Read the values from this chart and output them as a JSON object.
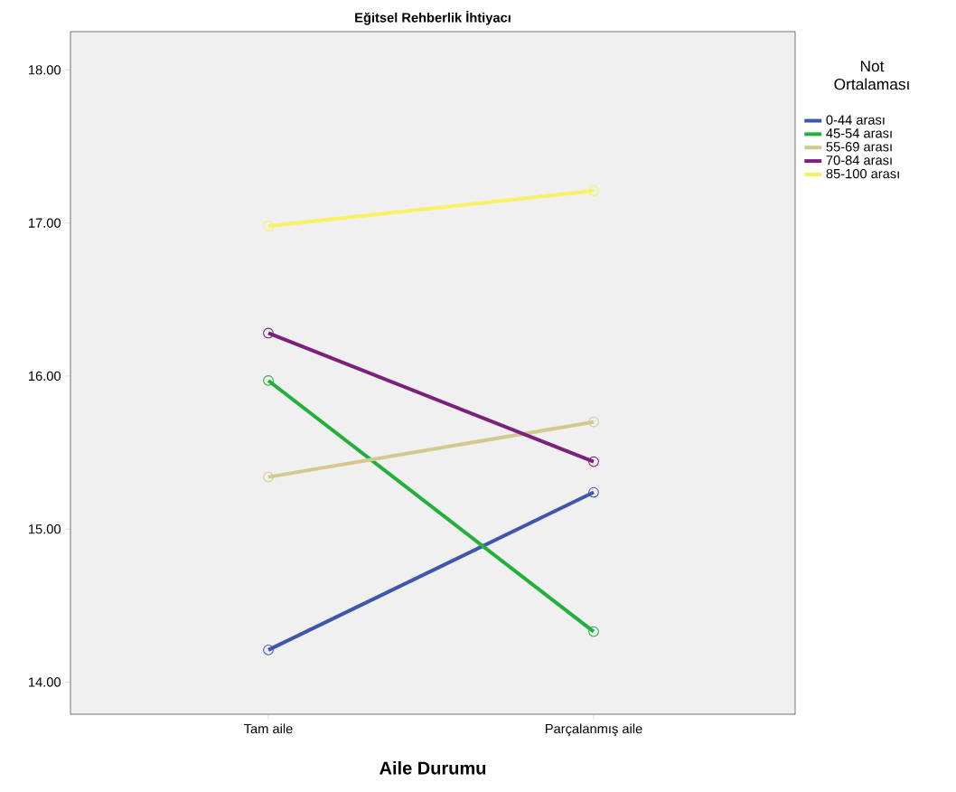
{
  "chart_data": {
    "type": "line",
    "title": "Eğitsel Rehberlik İhtiyacı",
    "xlabel": "Aile Durumu",
    "legend_title": "Not Ortalaması",
    "categories": [
      "Tam aile",
      "Parçalanmış aile"
    ],
    "series": [
      {
        "name": "0-44 arası",
        "color": "#3f57ab",
        "values": [
          14.21,
          15.24
        ]
      },
      {
        "name": "45-54 arası",
        "color": "#22b03a",
        "values": [
          15.97,
          14.33
        ]
      },
      {
        "name": "55-69 arası",
        "color": "#d4c98c",
        "values": [
          15.34,
          15.7
        ]
      },
      {
        "name": "70-84 arası",
        "color": "#7c207c",
        "values": [
          16.28,
          15.44
        ]
      },
      {
        "name": "85-100 arası",
        "color": "#f6f363",
        "values": [
          16.98,
          17.21
        ]
      }
    ],
    "ylim": [
      13.79,
      18.25
    ],
    "yticks": [
      {
        "value": 14,
        "label": "14.00"
      },
      {
        "value": 15,
        "label": "15.00"
      },
      {
        "value": 16,
        "label": "16.00"
      },
      {
        "value": 17,
        "label": "17.00"
      },
      {
        "value": 18,
        "label": "18.00"
      }
    ],
    "grid": false,
    "legend": "right",
    "marker": "circle",
    "line_style": "solid"
  }
}
